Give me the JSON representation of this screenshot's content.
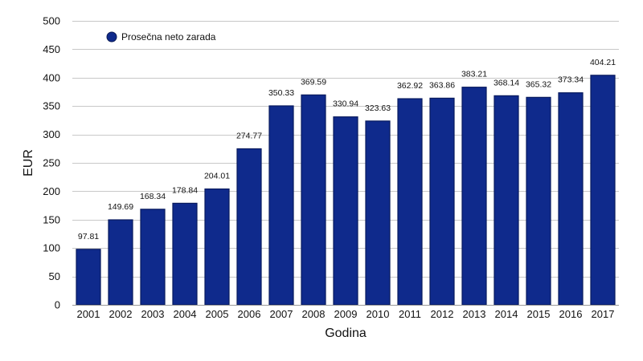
{
  "chart_data": {
    "type": "bar",
    "xlabel": "Godina",
    "ylabel": "EUR",
    "ylim": [
      0,
      500
    ],
    "yticks": [
      0,
      50,
      100,
      150,
      200,
      250,
      300,
      350,
      400,
      450,
      500
    ],
    "grid": true,
    "legend_position": "top-left",
    "categories": [
      "2001",
      "2002",
      "2003",
      "2004",
      "2005",
      "2006",
      "2007",
      "2008",
      "2009",
      "2010",
      "2011",
      "2012",
      "2013",
      "2014",
      "2015",
      "2016",
      "2017"
    ],
    "series": [
      {
        "name": "Prosečna neto zarada",
        "color": "#0f2a8c",
        "values": [
          97.81,
          149.69,
          168.34,
          178.84,
          204.01,
          274.77,
          350.33,
          369.59,
          330.94,
          323.63,
          362.92,
          363.86,
          383.21,
          368.14,
          365.32,
          373.34,
          404.21
        ],
        "labels": [
          "97.81",
          "149.69",
          "168.34",
          "178.84",
          "204.01",
          "274.77",
          "350.33",
          "369.59",
          "330.94",
          "323.63",
          "362.92",
          "363.86",
          "383.21",
          "368.14",
          "365.32",
          "373.34",
          "404.21"
        ]
      }
    ]
  }
}
